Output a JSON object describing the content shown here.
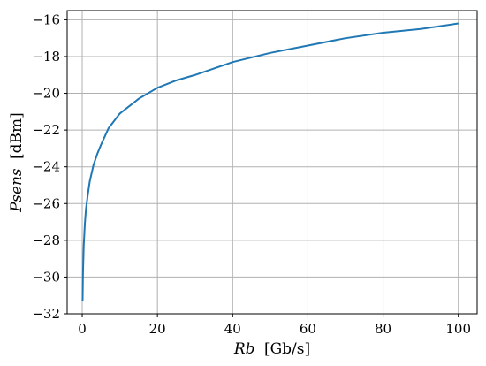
{
  "chart_data": {
    "type": "line",
    "title": "",
    "xlabel_var": "Rb",
    "xlabel_unit": "[Gb/s]",
    "ylabel_var": "Psens",
    "ylabel_unit": "[dBm]",
    "xlim": [
      -4,
      105
    ],
    "ylim": [
      -32,
      -15.5
    ],
    "xticks": [
      0,
      20,
      40,
      60,
      80,
      100
    ],
    "xtick_labels": [
      "0",
      "20",
      "40",
      "60",
      "80",
      "100"
    ],
    "yticks": [
      -32,
      -30,
      -28,
      -26,
      -24,
      -22,
      -20,
      -18,
      -16
    ],
    "ytick_labels": [
      "−32",
      "−30",
      "−28",
      "−26",
      "−24",
      "−22",
      "−20",
      "−18",
      "−16"
    ],
    "grid": true,
    "legend": "none",
    "series": [
      {
        "color": "#1f77b4",
        "x": [
          0.1,
          0.2,
          0.4,
          0.7,
          1,
          1.5,
          2,
          3,
          4,
          5,
          7,
          10,
          15,
          20,
          25,
          30,
          40,
          50,
          60,
          70,
          80,
          90,
          100
        ],
        "y": [
          -31.3,
          -29.8,
          -28.3,
          -27.1,
          -26.3,
          -25.5,
          -24.8,
          -23.9,
          -23.3,
          -22.8,
          -21.9,
          -21.1,
          -20.3,
          -19.7,
          -19.3,
          -19.0,
          -18.3,
          -17.8,
          -17.4,
          -17.0,
          -16.7,
          -16.5,
          -16.2
        ]
      }
    ]
  }
}
